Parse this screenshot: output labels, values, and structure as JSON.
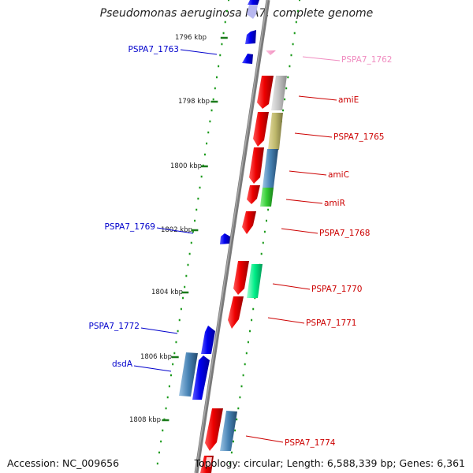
{
  "title": "Pseudomonas aeruginosa PA7, complete genome",
  "accession": "Accession: NC_009656",
  "summary": "Topology: circular; Length: 6,588,339 bp; Genes: 6,361",
  "kbp_labels": [
    "1796 kbp",
    "1798 kbp",
    "1800 kbp",
    "1802 kbp",
    "1804 kbp",
    "1806 kbp",
    "1808 kbp"
  ],
  "colors": {
    "backbone": "#808080",
    "tick_major": "#1a7a1a",
    "tick_minor": "#1a9a1a",
    "reverse_label": "#0000cc",
    "forward_label": "#cc0000",
    "faint_label": "#f08cc0"
  },
  "genes": [
    {
      "label": "PSPA7_1763",
      "strand": "reverse"
    },
    {
      "label": "PSPA7_1762",
      "strand": "forward"
    },
    {
      "label": "amiE",
      "strand": "forward"
    },
    {
      "label": "PSPA7_1765",
      "strand": "forward"
    },
    {
      "label": "amiC",
      "strand": "forward"
    },
    {
      "label": "amiR",
      "strand": "forward"
    },
    {
      "label": "PSPA7_1768",
      "strand": "forward"
    },
    {
      "label": "PSPA7_1769",
      "strand": "reverse"
    },
    {
      "label": "PSPA7_1770",
      "strand": "forward"
    },
    {
      "label": "PSPA7_1771",
      "strand": "forward"
    },
    {
      "label": "PSPA7_1772",
      "strand": "reverse"
    },
    {
      "label": "dsdA",
      "strand": "reverse"
    },
    {
      "label": "PSPA7_1774",
      "strand": "forward"
    }
  ]
}
